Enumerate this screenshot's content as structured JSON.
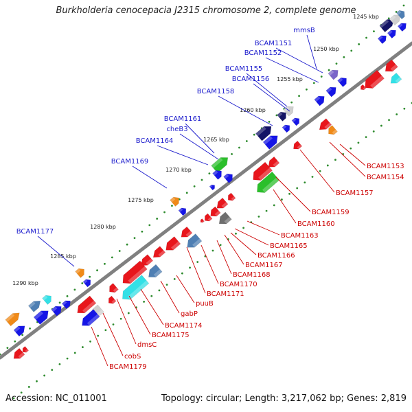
{
  "title": "Burkholderia cenocepacia J2315 chromosome 2, complete genome",
  "footer": {
    "accession": "Accession: NC_011001",
    "stats": "Topology: circular; Length: 3,217,062 bp; Genes: 2,819"
  },
  "colors": {
    "backbone": "#808080",
    "forward_label": "#1a1acc",
    "reverse_label": "#cc0000",
    "tick_dots": "#2e8b2e",
    "gene_palette": [
      "red",
      "blue",
      "navy",
      "steelblue",
      "cyan",
      "green",
      "orange",
      "grey",
      "silver",
      "violet"
    ]
  },
  "ticks": [
    "1245 kbp",
    "1250 kbp",
    "1255 kbp",
    "1260 kbp",
    "1265 kbp",
    "1270 kbp",
    "1275 kbp",
    "1280 kbp",
    "1285 kbp",
    "1290 kbp"
  ],
  "labels_forward": [
    "mmsB",
    "BCAM1151",
    "BCAM1152",
    "BCAM1155",
    "BCAM1156",
    "BCAM1158",
    "BCAM1161",
    "cheB3",
    "BCAM1164",
    "BCAM1169",
    "BCAM1177"
  ],
  "labels_reverse": [
    "BCAM1153",
    "BCAM1154",
    "BCAM1157",
    "BCAM1159",
    "BCAM1160",
    "BCAM1163",
    "BCAM1165",
    "BCAM1166",
    "BCAM1167",
    "BCAM1168",
    "BCAM1170",
    "BCAM1171",
    "puuB",
    "gabP",
    "BCAM1174",
    "BCAM1175",
    "dmsC",
    "cobS",
    "BCAM1179"
  ]
}
